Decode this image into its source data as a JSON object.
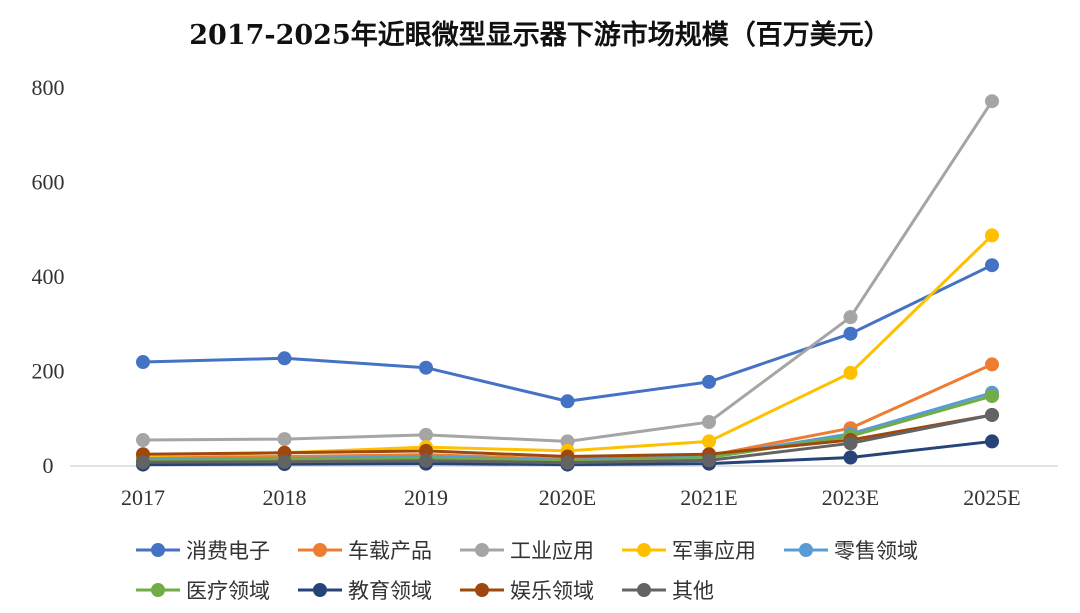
{
  "chart_data": {
    "type": "line",
    "title": "2017-2025年近眼微型显示器下游市场规模（百万美元）",
    "xlabel": "",
    "ylabel": "",
    "categories": [
      "2017",
      "2018",
      "2019",
      "2020E",
      "2021E",
      "2023E",
      "2025E"
    ],
    "ylim": [
      0,
      800
    ],
    "yticks": [
      0,
      200,
      400,
      600,
      800
    ],
    "legend_position": "bottom",
    "series": [
      {
        "name": "消费电子",
        "color": "#4472C4",
        "values": [
          220,
          228,
          208,
          137,
          178,
          280,
          425
        ]
      },
      {
        "name": "车载产品",
        "color": "#ED7D31",
        "values": [
          18,
          20,
          24,
          14,
          22,
          80,
          215
        ]
      },
      {
        "name": "工业应用",
        "color": "#A5A5A5",
        "values": [
          55,
          57,
          66,
          52,
          93,
          315,
          772
        ]
      },
      {
        "name": "军事应用",
        "color": "#FFC000",
        "values": [
          22,
          28,
          40,
          32,
          52,
          197,
          488
        ]
      },
      {
        "name": "零售领域",
        "color": "#5B9BD5",
        "values": [
          14,
          16,
          20,
          12,
          20,
          68,
          155
        ]
      },
      {
        "name": "医疗领域",
        "color": "#70AD47",
        "values": [
          12,
          14,
          17,
          10,
          18,
          63,
          148
        ]
      },
      {
        "name": "教育领域",
        "color": "#264478",
        "values": [
          3,
          4,
          5,
          3,
          5,
          18,
          52
        ]
      },
      {
        "name": "娱乐领域",
        "color": "#9E480E",
        "values": [
          25,
          28,
          32,
          20,
          25,
          55,
          108
        ]
      },
      {
        "name": "其他",
        "color": "#636363",
        "values": [
          8,
          9,
          11,
          7,
          12,
          48,
          108
        ]
      }
    ]
  }
}
